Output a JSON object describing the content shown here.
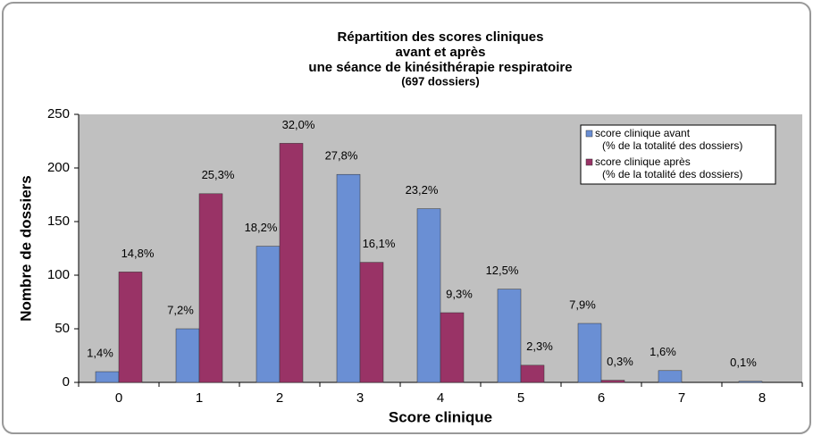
{
  "chart_data": {
    "type": "bar",
    "title": [
      "Répartition des scores cliniques",
      "avant et après",
      "une séance de kinésithérapie respiratoire"
    ],
    "subtitle": "(697 dossiers)",
    "x_label": "Score clinique",
    "y_label": "Nombre de dossiers",
    "categories": [
      "0",
      "1",
      "2",
      "3",
      "4",
      "5",
      "6",
      "7",
      "8"
    ],
    "series": [
      {
        "name": "score clinique avant\n(% de la totalité des dossiers)",
        "color": "#6a8fd4",
        "values": [
          10,
          50,
          127,
          194,
          162,
          87,
          55,
          11,
          1
        ],
        "value_labels": [
          "1,4%",
          "7,2%",
          "18,2%",
          "27,8%",
          "23,2%",
          "12,5%",
          "7,9%",
          "1,6%",
          "0,1%"
        ]
      },
      {
        "name": "score clinique après\n(% de la totalité des dossiers)",
        "color": "#993366",
        "values": [
          103,
          176,
          223,
          112,
          65,
          16,
          2,
          0,
          0
        ],
        "value_labels": [
          "14,8%",
          "25,3%",
          "32,0%",
          "16,1%",
          "9,3%",
          "2,3%",
          "0,3%",
          null,
          null
        ]
      }
    ],
    "ylim": [
      0,
      250
    ],
    "yticks": [
      0,
      50,
      100,
      150,
      200,
      250
    ],
    "grid": false,
    "legend": "upper right"
  }
}
